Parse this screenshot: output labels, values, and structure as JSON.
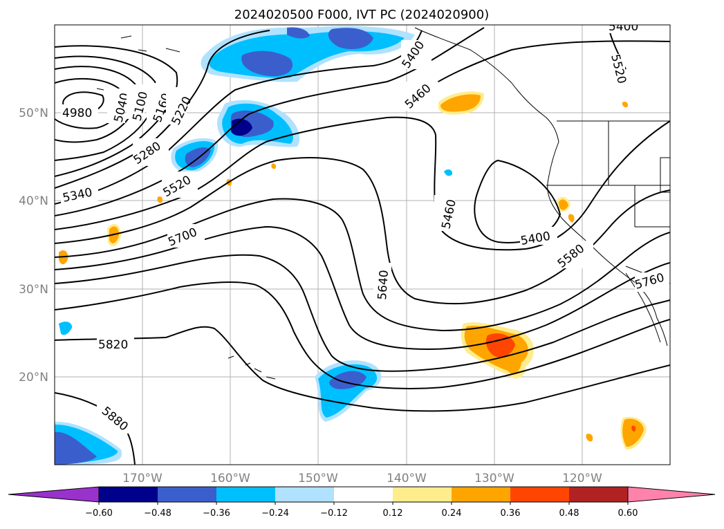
{
  "title": "2024020500 F000, IVT PC (2024020900)",
  "lat_labels": [
    "50°N",
    "40°N",
    "30°N",
    "20°N"
  ],
  "lon_labels": [
    "170°W",
    "160°W",
    "150°W",
    "140°W",
    "130°W",
    "120°W"
  ],
  "contour_labels": {
    "c4980": "4980",
    "c5040": "5040",
    "c5100": "5100",
    "c5160": "5160",
    "c5220": "5220",
    "c5280": "5280",
    "c5340": "5340",
    "c5400": "5400",
    "c5460": "5460",
    "c5520": "5520",
    "c5580": "5580",
    "c5640": "5640",
    "c5700": "5700",
    "c5760": "5760",
    "c5820": "5820",
    "c5880": "5880"
  },
  "colorbar": {
    "ticks": [
      "−0.60",
      "−0.48",
      "−0.36",
      "−0.24",
      "−0.12",
      "0.12",
      "0.24",
      "0.36",
      "0.48",
      "0.60"
    ],
    "colors": [
      "#9932cc",
      "#00008b",
      "#3a5fcd",
      "#00bfff",
      "#b0e2ff",
      "#ffffff",
      "#ffec8b",
      "#ffa500",
      "#ff4500",
      "#b22222",
      "#ff82ab"
    ]
  }
}
